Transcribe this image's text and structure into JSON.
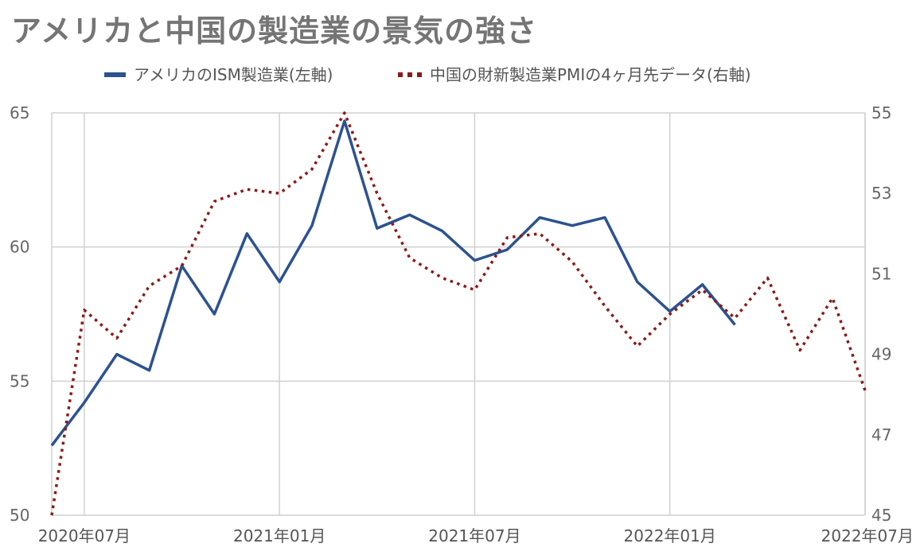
{
  "chart_data": {
    "type": "line",
    "title": "アメリカと中国の製造業の景気の強さ",
    "x_ticks": [
      "2020年07月",
      "2021年01月",
      "2021年07月",
      "2022年01月",
      "2022年07月"
    ],
    "y_left": {
      "ticks": [
        50,
        55,
        60,
        65
      ],
      "range": [
        50,
        65
      ]
    },
    "y_right": {
      "ticks": [
        45,
        47,
        49,
        51,
        53,
        55
      ],
      "range": [
        45,
        55
      ]
    },
    "grid": true,
    "legend_position": "top",
    "series": [
      {
        "name": "アメリカのISM製造業(左軸)",
        "axis": "left",
        "style": "solid",
        "color": "#2c5290",
        "x": [
          "2020-06",
          "2020-07",
          "2020-08",
          "2020-09",
          "2020-10",
          "2020-11",
          "2020-12",
          "2021-01",
          "2021-02",
          "2021-03",
          "2021-04",
          "2021-05",
          "2021-06",
          "2021-07",
          "2021-08",
          "2021-09",
          "2021-10",
          "2021-11",
          "2021-12",
          "2022-01",
          "2022-02",
          "2022-03"
        ],
        "values": [
          52.6,
          54.2,
          56.0,
          55.4,
          59.3,
          57.5,
          60.5,
          58.7,
          60.8,
          64.7,
          60.7,
          61.2,
          60.6,
          59.5,
          59.9,
          61.1,
          60.8,
          61.1,
          58.7,
          57.6,
          58.6,
          57.1
        ]
      },
      {
        "name": "中国の財新製造業PMIの4ヶ月先データ(右軸)",
        "axis": "right",
        "style": "dotted",
        "color": "#8b1a1a",
        "x": [
          "2020-06",
          "2020-07",
          "2020-08",
          "2020-09",
          "2020-10",
          "2020-11",
          "2020-12",
          "2021-01",
          "2021-02",
          "2021-03",
          "2021-04",
          "2021-05",
          "2021-06",
          "2021-07",
          "2021-08",
          "2021-09",
          "2021-10",
          "2021-11",
          "2021-12",
          "2022-01",
          "2022-02",
          "2022-03",
          "2022-04",
          "2022-05",
          "2022-06",
          "2022-07"
        ],
        "values": [
          45.0,
          50.1,
          49.4,
          50.7,
          51.2,
          52.8,
          53.1,
          53.0,
          53.6,
          55.0,
          53.0,
          51.4,
          50.9,
          50.6,
          51.9,
          52.0,
          51.3,
          50.2,
          49.2,
          50.0,
          50.6,
          49.9,
          50.9,
          49.1,
          50.4,
          48.1
        ]
      }
    ]
  }
}
